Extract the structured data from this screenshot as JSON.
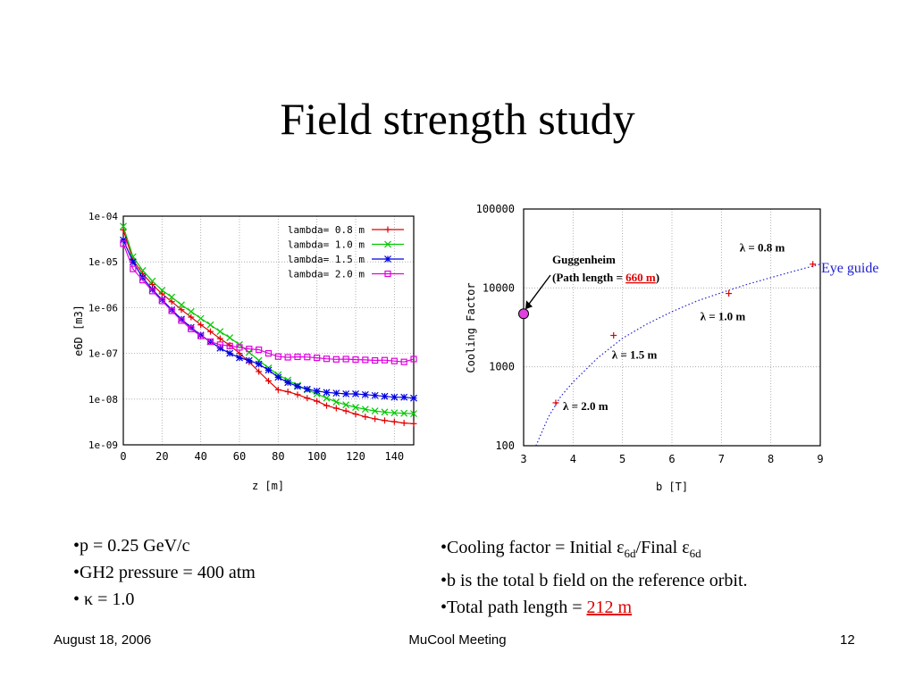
{
  "slide": {
    "title": "Field strength study"
  },
  "bullets_left": [
    {
      "prefix": "•",
      "text": "p = 0.25 GeV/c"
    },
    {
      "prefix": "•",
      "text": "GH2 pressure = 400 atm"
    },
    {
      "prefix": "• ",
      "text": "κ = 1.0"
    }
  ],
  "bullets_right": {
    "cooling_factor": {
      "a": "•Cooling factor = Initial ε",
      "sub1": "6d",
      "b": "/Final ε",
      "sub2": "6d"
    },
    "b_field": "•b is the total b field on the reference orbit.",
    "path_length": {
      "prefix": "•Total path length = ",
      "value": "212 m"
    }
  },
  "footer": {
    "date": "August 18, 2006",
    "meeting": "MuCool Meeting",
    "page": "12"
  },
  "chart_data": [
    {
      "type": "line",
      "xlabel": "z [m]",
      "ylabel": "e6D [m3]",
      "xlim": [
        0,
        150
      ],
      "ylim": [
        1e-09,
        0.0001
      ],
      "y_scale": "log",
      "grid": true,
      "legend_position": "top-right",
      "x_ticks": [
        0,
        20,
        40,
        60,
        80,
        100,
        120,
        140
      ],
      "y_ticks": [
        {
          "v": 0.0001,
          "label": "1e-04"
        },
        {
          "v": 1e-05,
          "label": "1e-05"
        },
        {
          "v": 1e-06,
          "label": "1e-06"
        },
        {
          "v": 1e-07,
          "label": "1e-07"
        },
        {
          "v": 1e-08,
          "label": "1e-08"
        },
        {
          "v": 1e-09,
          "label": "1e-09"
        }
      ],
      "series": [
        {
          "name": "lambda= 0.8 m",
          "color": "#e00000",
          "marker": "plus",
          "x": [
            0,
            5,
            10,
            15,
            20,
            25,
            30,
            35,
            40,
            45,
            50,
            55,
            60,
            65,
            70,
            75,
            80,
            85,
            90,
            95,
            100,
            105,
            110,
            115,
            120,
            125,
            130,
            135,
            140,
            145,
            150
          ],
          "y": [
            5e-05,
            1.1e-05,
            5.5e-06,
            3.2e-06,
            2e-06,
            1.35e-06,
            9e-07,
            6.2e-07,
            4.2e-07,
            3e-07,
            2.1e-07,
            1.5e-07,
            1e-07,
            6.5e-08,
            4e-08,
            2.5e-08,
            1.6e-08,
            1.45e-08,
            1.25e-08,
            1.05e-08,
            9e-09,
            7.2e-09,
            6.3e-09,
            5.5e-09,
            4.7e-09,
            4.1e-09,
            3.7e-09,
            3.4e-09,
            3.2e-09,
            3e-09,
            2.9e-09
          ]
        },
        {
          "name": "lambda= 1.0 m",
          "color": "#00c800",
          "marker": "x",
          "x": [
            0,
            5,
            10,
            15,
            20,
            25,
            30,
            35,
            40,
            45,
            50,
            55,
            60,
            65,
            70,
            75,
            80,
            85,
            90,
            95,
            100,
            105,
            110,
            115,
            120,
            125,
            130,
            135,
            140,
            145,
            150
          ],
          "y": [
            6e-05,
            1.3e-05,
            6.5e-06,
            3.8e-06,
            2.4e-06,
            1.7e-06,
            1.15e-06,
            8.2e-07,
            5.8e-07,
            4.2e-07,
            3e-07,
            2.2e-07,
            1.55e-07,
            1.05e-07,
            7e-08,
            4.8e-08,
            3.4e-08,
            2.6e-08,
            2e-08,
            1.6e-08,
            1.3e-08,
            1.05e-08,
            8.7e-09,
            7.5e-09,
            6.6e-09,
            6e-09,
            5.5e-09,
            5.2e-09,
            5e-09,
            4.9e-09,
            4.8e-09
          ]
        },
        {
          "name": "lambda= 1.5 m",
          "color": "#0000e0",
          "marker": "star",
          "x": [
            0,
            5,
            10,
            15,
            20,
            25,
            30,
            35,
            40,
            45,
            50,
            55,
            60,
            65,
            70,
            75,
            80,
            85,
            90,
            95,
            100,
            105,
            110,
            115,
            120,
            125,
            130,
            135,
            140,
            145,
            150
          ],
          "y": [
            3e-05,
            1e-05,
            4.5e-06,
            2.5e-06,
            1.5e-06,
            9e-07,
            5.6e-07,
            3.7e-07,
            2.5e-07,
            1.8e-07,
            1.3e-07,
            1e-07,
            8e-08,
            7e-08,
            5.8e-08,
            4.3e-08,
            3e-08,
            2.3e-08,
            1.9e-08,
            1.65e-08,
            1.5e-08,
            1.4e-08,
            1.35e-08,
            1.3e-08,
            1.3e-08,
            1.25e-08,
            1.2e-08,
            1.15e-08,
            1.1e-08,
            1.1e-08,
            1.05e-08
          ]
        },
        {
          "name": "lambda= 2.0 m",
          "color": "#e000e0",
          "marker": "square",
          "x": [
            0,
            5,
            10,
            15,
            20,
            25,
            30,
            35,
            40,
            45,
            50,
            55,
            60,
            65,
            70,
            75,
            80,
            85,
            90,
            95,
            100,
            105,
            110,
            115,
            120,
            125,
            130,
            135,
            140,
            145,
            150
          ],
          "y": [
            2.5e-05,
            7e-06,
            4e-06,
            2.3e-06,
            1.4e-06,
            8.5e-07,
            5.2e-07,
            3.4e-07,
            2.4e-07,
            1.8e-07,
            1.55e-07,
            1.45e-07,
            1.35e-07,
            1.25e-07,
            1.2e-07,
            1e-07,
            8.5e-08,
            8.2e-08,
            8.4e-08,
            8.3e-08,
            8e-08,
            7.6e-08,
            7.4e-08,
            7.5e-08,
            7.3e-08,
            7.2e-08,
            7e-08,
            7.1e-08,
            6.8e-08,
            6.5e-08,
            7.5e-08
          ]
        }
      ]
    },
    {
      "type": "scatter",
      "xlabel": "b [T]",
      "ylabel": "Cooling Factor",
      "xlim": [
        3,
        9
      ],
      "ylim": [
        100,
        100000
      ],
      "y_scale": "log",
      "grid": true,
      "x_ticks": [
        3,
        4,
        5,
        6,
        7,
        8,
        9
      ],
      "y_ticks": [
        {
          "v": 100,
          "label": "100"
        },
        {
          "v": 1000,
          "label": "1000"
        },
        {
          "v": 10000,
          "label": "10000"
        },
        {
          "v": 100000,
          "label": "100000"
        }
      ],
      "points": [
        {
          "x": 3.65,
          "y": 350,
          "label": "λ = 2.0 m"
        },
        {
          "x": 4.82,
          "y": 2500,
          "label": "λ = 1.5 m"
        },
        {
          "x": 7.15,
          "y": 8500,
          "label": "λ = 1.0 m"
        },
        {
          "x": 8.85,
          "y": 20000,
          "label": "λ = 0.8 m"
        }
      ],
      "highlight_point": {
        "x": 3.0,
        "y": 4700,
        "color": "#e040e0",
        "label_line1": "Guggenheim",
        "label_line2_prefix": "(Path length = ",
        "label_line2_value": "660 m",
        "label_line2_suffix": ")"
      },
      "eye_guide": {
        "label": "Eye guide",
        "color": "#2020d0",
        "x": [
          3.25,
          3.5,
          3.75,
          4.0,
          4.5,
          5.0,
          5.5,
          6.0,
          6.5,
          7.0,
          7.5,
          8.0,
          8.5,
          9.0
        ],
        "y": [
          100,
          230,
          420,
          640,
          1300,
          2300,
          3500,
          5000,
          6800,
          8700,
          11000,
          13500,
          16500,
          20000
        ]
      },
      "marker_color": "#e00000"
    }
  ]
}
